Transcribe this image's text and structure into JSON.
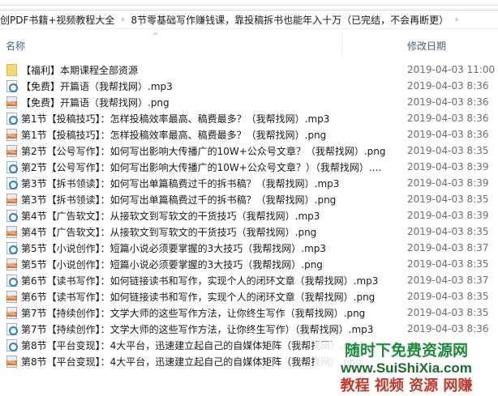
{
  "breadcrumb": {
    "items": [
      "创PDF书籍+视频教程大全",
      "8节零基础写作赚钱课，靠投稿拆书也能年入十万（已完结，不会再断更）"
    ]
  },
  "header": {
    "name": "名称",
    "date": "修改日期"
  },
  "files": [
    {
      "type": "folder",
      "name": "【福利】本期课程全部资源",
      "date": "2019-04-03 11:00"
    },
    {
      "type": "mp3",
      "name": "【免费】开篇语（我帮找网）.mp3",
      "date": "2019-04-03 8:36"
    },
    {
      "type": "png",
      "name": "【免费】开篇语（我帮找网）.png",
      "date": "2019-04-03 8:36"
    },
    {
      "type": "mp3",
      "name": "第1节【投稿技巧】：怎样投稿效率最高、稿费最多？（我帮找网）.mp3",
      "date": "2019-04-03 8:36"
    },
    {
      "type": "png",
      "name": "第1节【投稿技巧】：怎样投稿效率最高、稿费最多？（我帮找网）.png",
      "date": "2019-04-03 8:36"
    },
    {
      "type": "png",
      "name": "第2节【公号写作】：如何写出影响大传播广的10W+公众号文章？（我帮找网）.png",
      "date": "2019-04-03 8:35"
    },
    {
      "type": "mp3",
      "name": "第2节【公号写作】：如何写出影响大传播广的10W+公众号文章？）（我帮找网）....",
      "date": "2019-04-03 8:39"
    },
    {
      "type": "mp3",
      "name": "第3节【拆书领读】：如何写出单篇稿费过千的拆书稿？（我帮找网）.mp3",
      "date": "2019-04-03 8:39"
    },
    {
      "type": "png",
      "name": "第3节【拆书领读】：如何写出单篇稿费过千的拆书稿？（我帮找网）.png",
      "date": "2019-04-03 8:35"
    },
    {
      "type": "mp3",
      "name": "第4节【广告软文】：从接软文到写软文的干货技巧（我帮找网）.mp3",
      "date": "2019-04-03 8:39"
    },
    {
      "type": "png",
      "name": "第4节【广告软文】：从接软文到写软文的干货技巧（我帮找网）.png",
      "date": "2019-04-03 8:35"
    },
    {
      "type": "mp3",
      "name": "第5节【小说创作】：短篇小说必须要掌握的3大技巧（我帮找网）.mp3",
      "date": "2019-04-03 8:37"
    },
    {
      "type": "png",
      "name": "第5节【小说创作】：短篇小说必须要掌握的3大技巧（我帮找网）.png",
      "date": "2019-04-03 8:35"
    },
    {
      "type": "mp3",
      "name": "第6节【读书写作】：如何链接读书和写作，实现个人的闭环文章（我帮找网）.mp3",
      "date": "2019-04-03 8:37"
    },
    {
      "type": "png",
      "name": "第6节【读书写作】：如何链接读书和写作，实现个人的闭环文章（我帮找网）.png",
      "date": "2019-04-03 8:35"
    },
    {
      "type": "png",
      "name": "第7节【持续创作】：文学大师的这些写作方法，让你终生写作（我帮找网）.png",
      "date": "2019-04-03 8:35"
    },
    {
      "type": "mp3",
      "name": "第7节【持续创作】：文学大师的这些写作方法，让你终生写作）（我帮找网）.mp3",
      "date": "2019-04-03 8:36"
    },
    {
      "type": "mp3",
      "name": "第8节【平台变现】：4大平台，迅速建立起自己的自媒体矩阵（我帮找网）.mp3",
      "date": ""
    },
    {
      "type": "png",
      "name": "第8节【平台变现】：4大平台，迅速建立起自己的自媒体矩阵（我帮找网）.png",
      "date": ""
    }
  ],
  "watermark": {
    "line1": "随时下免费资源网",
    "line2": "www.SuiShiXia.com",
    "line3": "教程 视频 资源 网赚"
  }
}
